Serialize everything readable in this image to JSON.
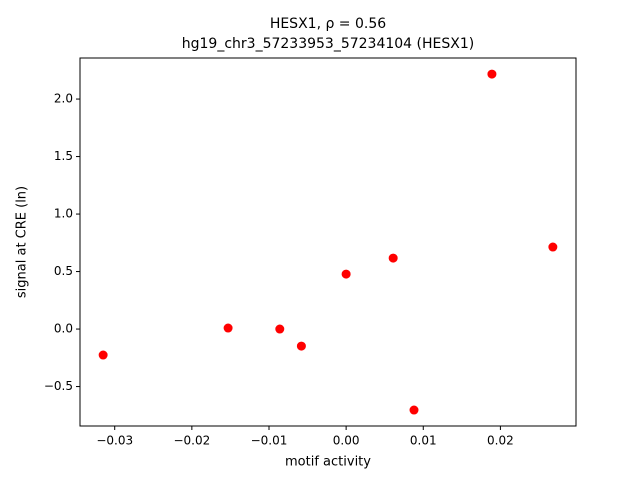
{
  "chart_data": {
    "type": "scatter",
    "title": "HESX1, ρ = 0.56",
    "subtitle": "hg19_chr3_57233953_57234104 (HESX1)",
    "x_label": "motif activity",
    "y_label": "signal at CRE (ln)",
    "color": "#ff0000",
    "x": [
      -0.0315,
      -0.0153,
      -0.0086,
      -0.0058,
      0.0,
      0.0061,
      0.0088,
      0.0189,
      0.0268
    ],
    "values": [
      -0.226,
      0.009,
      0.0,
      -0.148,
      0.478,
      0.617,
      -0.704,
      2.217,
      0.713
    ],
    "xlim": [
      -0.0345,
      0.0298
    ],
    "ylim": [
      -0.843,
      2.357
    ],
    "xticks": [
      {
        "value": -0.03,
        "label": "−0.03"
      },
      {
        "value": -0.02,
        "label": "−0.02"
      },
      {
        "value": -0.01,
        "label": "−0.01"
      },
      {
        "value": 0,
        "label": "0.00"
      },
      0.01,
      0.02
    ],
    "yticks": [
      {
        "value": -0.5,
        "label": "−0.5"
      },
      {
        "value": 0,
        "label": "0.0"
      },
      0.5,
      {
        "value": 1,
        "label": "1.0"
      },
      1.5,
      {
        "value": 2,
        "label": "2.0"
      }
    ],
    "grid": false
  }
}
